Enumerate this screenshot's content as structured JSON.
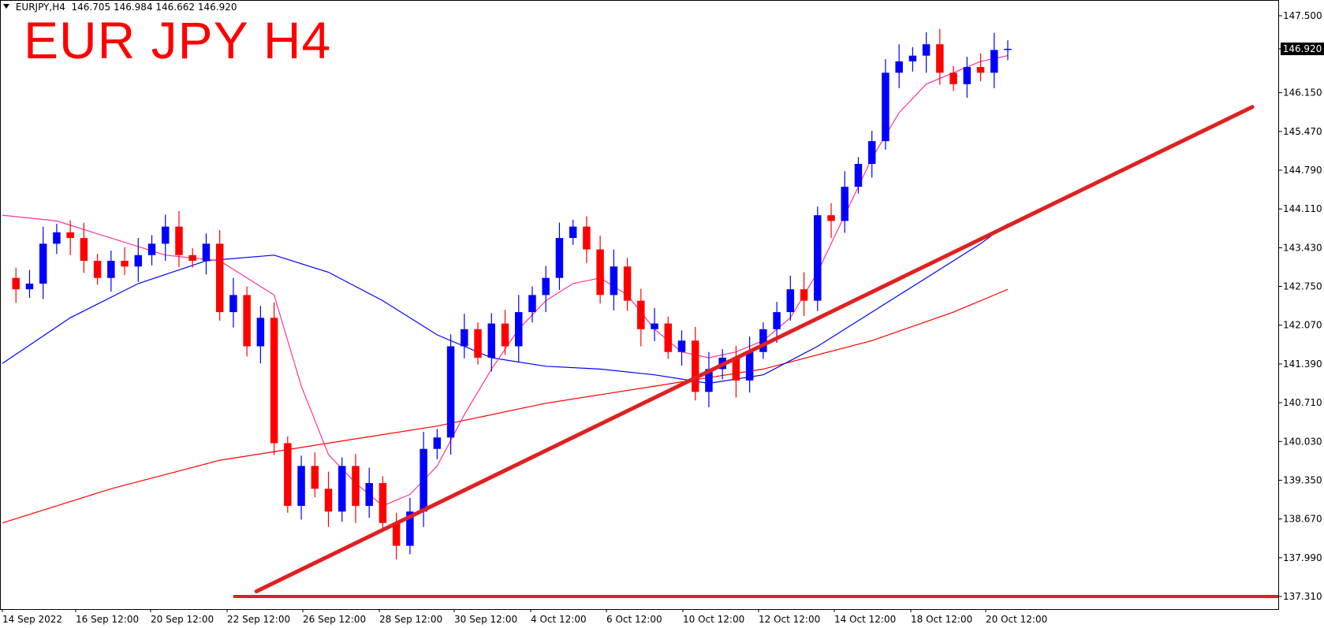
{
  "header": {
    "symbol_timeframe": "EURJPY,H4",
    "open": "146.705",
    "high": "146.984",
    "low": "146.662",
    "close": "146.920"
  },
  "overlay_title": "EUR JPY H4",
  "current_price_label": "146.920",
  "chart_data": {
    "type": "candlestick",
    "title": "EUR JPY H4",
    "y_axis_ticks": [
      "147.500",
      "146.920",
      "146.150",
      "145.470",
      "144.790",
      "144.110",
      "143.430",
      "142.750",
      "142.070",
      "141.390",
      "140.710",
      "140.030",
      "139.350",
      "138.670",
      "137.990",
      "137.310"
    ],
    "ylim": [
      137.2,
      147.6
    ],
    "x_axis_ticks": [
      "14 Sep 2022",
      "16 Sep 12:00",
      "20 Sep 12:00",
      "22 Sep 12:00",
      "26 Sep 12:00",
      "28 Sep 12:00",
      "30 Sep 12:00",
      "4 Oct 12:00",
      "6 Oct 12:00",
      "10 Oct 12:00",
      "12 Oct 12:00",
      "14 Oct 12:00",
      "18 Oct 12:00",
      "20 Oct 12:00"
    ],
    "bull_color": "#0000ff",
    "bear_color": "#ff0000",
    "close_path": [
      142.9,
      142.7,
      142.8,
      143.5,
      143.7,
      143.6,
      143.2,
      142.9,
      143.2,
      143.1,
      143.3,
      143.5,
      143.8,
      143.3,
      143.2,
      143.5,
      142.3,
      142.6,
      141.7,
      142.2,
      140.0,
      138.9,
      139.6,
      139.2,
      138.8,
      139.6,
      138.9,
      139.3,
      138.6,
      138.2,
      138.8,
      139.9,
      140.1,
      141.7,
      142.0,
      141.5,
      142.1,
      141.7,
      142.3,
      142.6,
      142.9,
      143.6,
      143.8,
      143.4,
      142.6,
      143.1,
      142.5,
      142.0,
      142.1,
      141.6,
      141.8,
      140.9,
      141.3,
      141.5,
      141.1,
      141.6,
      142.0,
      142.3,
      142.7,
      142.5,
      144.0,
      143.9,
      144.5,
      144.9,
      145.3,
      146.5,
      146.7,
      146.8,
      147.0,
      146.5,
      146.3,
      146.6,
      146.5,
      146.9,
      146.92
    ],
    "ma_fast_color": "#ff3399",
    "ma_fast": [
      [
        0,
        144.0
      ],
      [
        4,
        143.9
      ],
      [
        8,
        143.6
      ],
      [
        12,
        143.3
      ],
      [
        16,
        143.2
      ],
      [
        20,
        142.6
      ],
      [
        22,
        141.0
      ],
      [
        24,
        139.8
      ],
      [
        26,
        139.3
      ],
      [
        28,
        138.9
      ],
      [
        30,
        139.1
      ],
      [
        32,
        139.6
      ],
      [
        34,
        140.5
      ],
      [
        36,
        141.3
      ],
      [
        38,
        142.0
      ],
      [
        40,
        142.5
      ],
      [
        42,
        142.8
      ],
      [
        44,
        142.9
      ],
      [
        46,
        142.6
      ],
      [
        48,
        142.0
      ],
      [
        50,
        141.6
      ],
      [
        52,
        141.5
      ],
      [
        54,
        141.6
      ],
      [
        56,
        141.8
      ],
      [
        58,
        142.2
      ],
      [
        60,
        143.0
      ],
      [
        62,
        144.0
      ],
      [
        64,
        145.0
      ],
      [
        66,
        145.8
      ],
      [
        68,
        146.3
      ],
      [
        70,
        146.5
      ],
      [
        72,
        146.7
      ],
      [
        74,
        146.8
      ]
    ],
    "ma_mid_color": "#0000ff",
    "ma_mid": [
      [
        0,
        141.4
      ],
      [
        5,
        142.2
      ],
      [
        10,
        142.8
      ],
      [
        15,
        143.2
      ],
      [
        20,
        143.3
      ],
      [
        24,
        143.0
      ],
      [
        28,
        142.5
      ],
      [
        32,
        141.9
      ],
      [
        36,
        141.5
      ],
      [
        40,
        141.35
      ],
      [
        44,
        141.3
      ],
      [
        48,
        141.2
      ],
      [
        52,
        141.05
      ],
      [
        56,
        141.2
      ],
      [
        60,
        141.7
      ],
      [
        64,
        142.3
      ],
      [
        68,
        142.9
      ],
      [
        72,
        143.5
      ],
      [
        74,
        143.85
      ]
    ],
    "ma_slow_color": "#ff0000",
    "ma_slow": [
      [
        0,
        138.6
      ],
      [
        8,
        139.2
      ],
      [
        16,
        139.7
      ],
      [
        24,
        140.0
      ],
      [
        32,
        140.3
      ],
      [
        40,
        140.7
      ],
      [
        48,
        141.0
      ],
      [
        56,
        141.3
      ],
      [
        64,
        141.8
      ],
      [
        70,
        142.3
      ],
      [
        74,
        142.7
      ]
    ],
    "trendline_color": "#e02020",
    "trendline": [
      [
        18.7,
        137.4
      ],
      [
        92,
        145.9
      ]
    ],
    "support_line": {
      "price": 137.31,
      "from_index": 17
    }
  }
}
